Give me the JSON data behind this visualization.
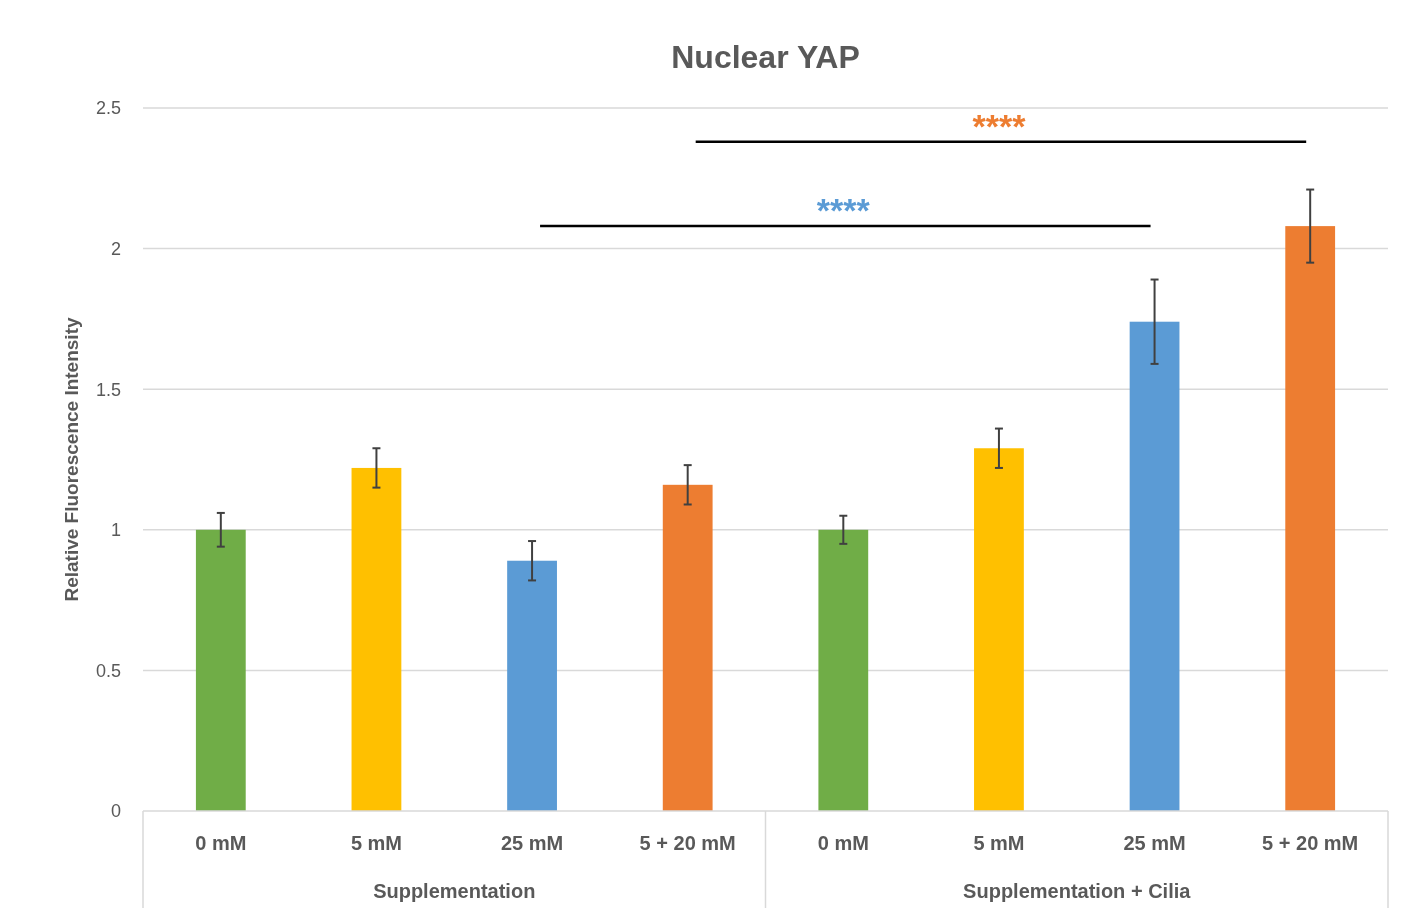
{
  "chart_data": {
    "type": "bar",
    "title": "Nuclear YAP",
    "ylabel": "Relative Fluorescence Intensity",
    "categories": [
      "0 mM",
      "5 mM",
      "25 mM",
      "5 + 20 mM",
      "0 mM",
      "5 mM",
      "25 mM",
      "5 + 20 mM"
    ],
    "values": [
      1.0,
      1.22,
      0.89,
      1.16,
      1.0,
      1.29,
      1.74,
      2.08
    ],
    "colors": [
      "#70ad47",
      "#ffc000",
      "#5b9bd5",
      "#ed7d31",
      "#70ad47",
      "#ffc000",
      "#5b9bd5",
      "#ed7d31"
    ],
    "errors": [
      0.06,
      0.07,
      0.07,
      0.07,
      0.05,
      0.07,
      0.15,
      0.13
    ],
    "ylim": [
      0,
      2.5
    ],
    "yticks": [
      0,
      0.5,
      1,
      1.5,
      2,
      2.5
    ],
    "grid": "y",
    "annotations": [
      "Supplementation",
      "Supplementation + Cilia",
      "****",
      "****"
    ]
  }
}
